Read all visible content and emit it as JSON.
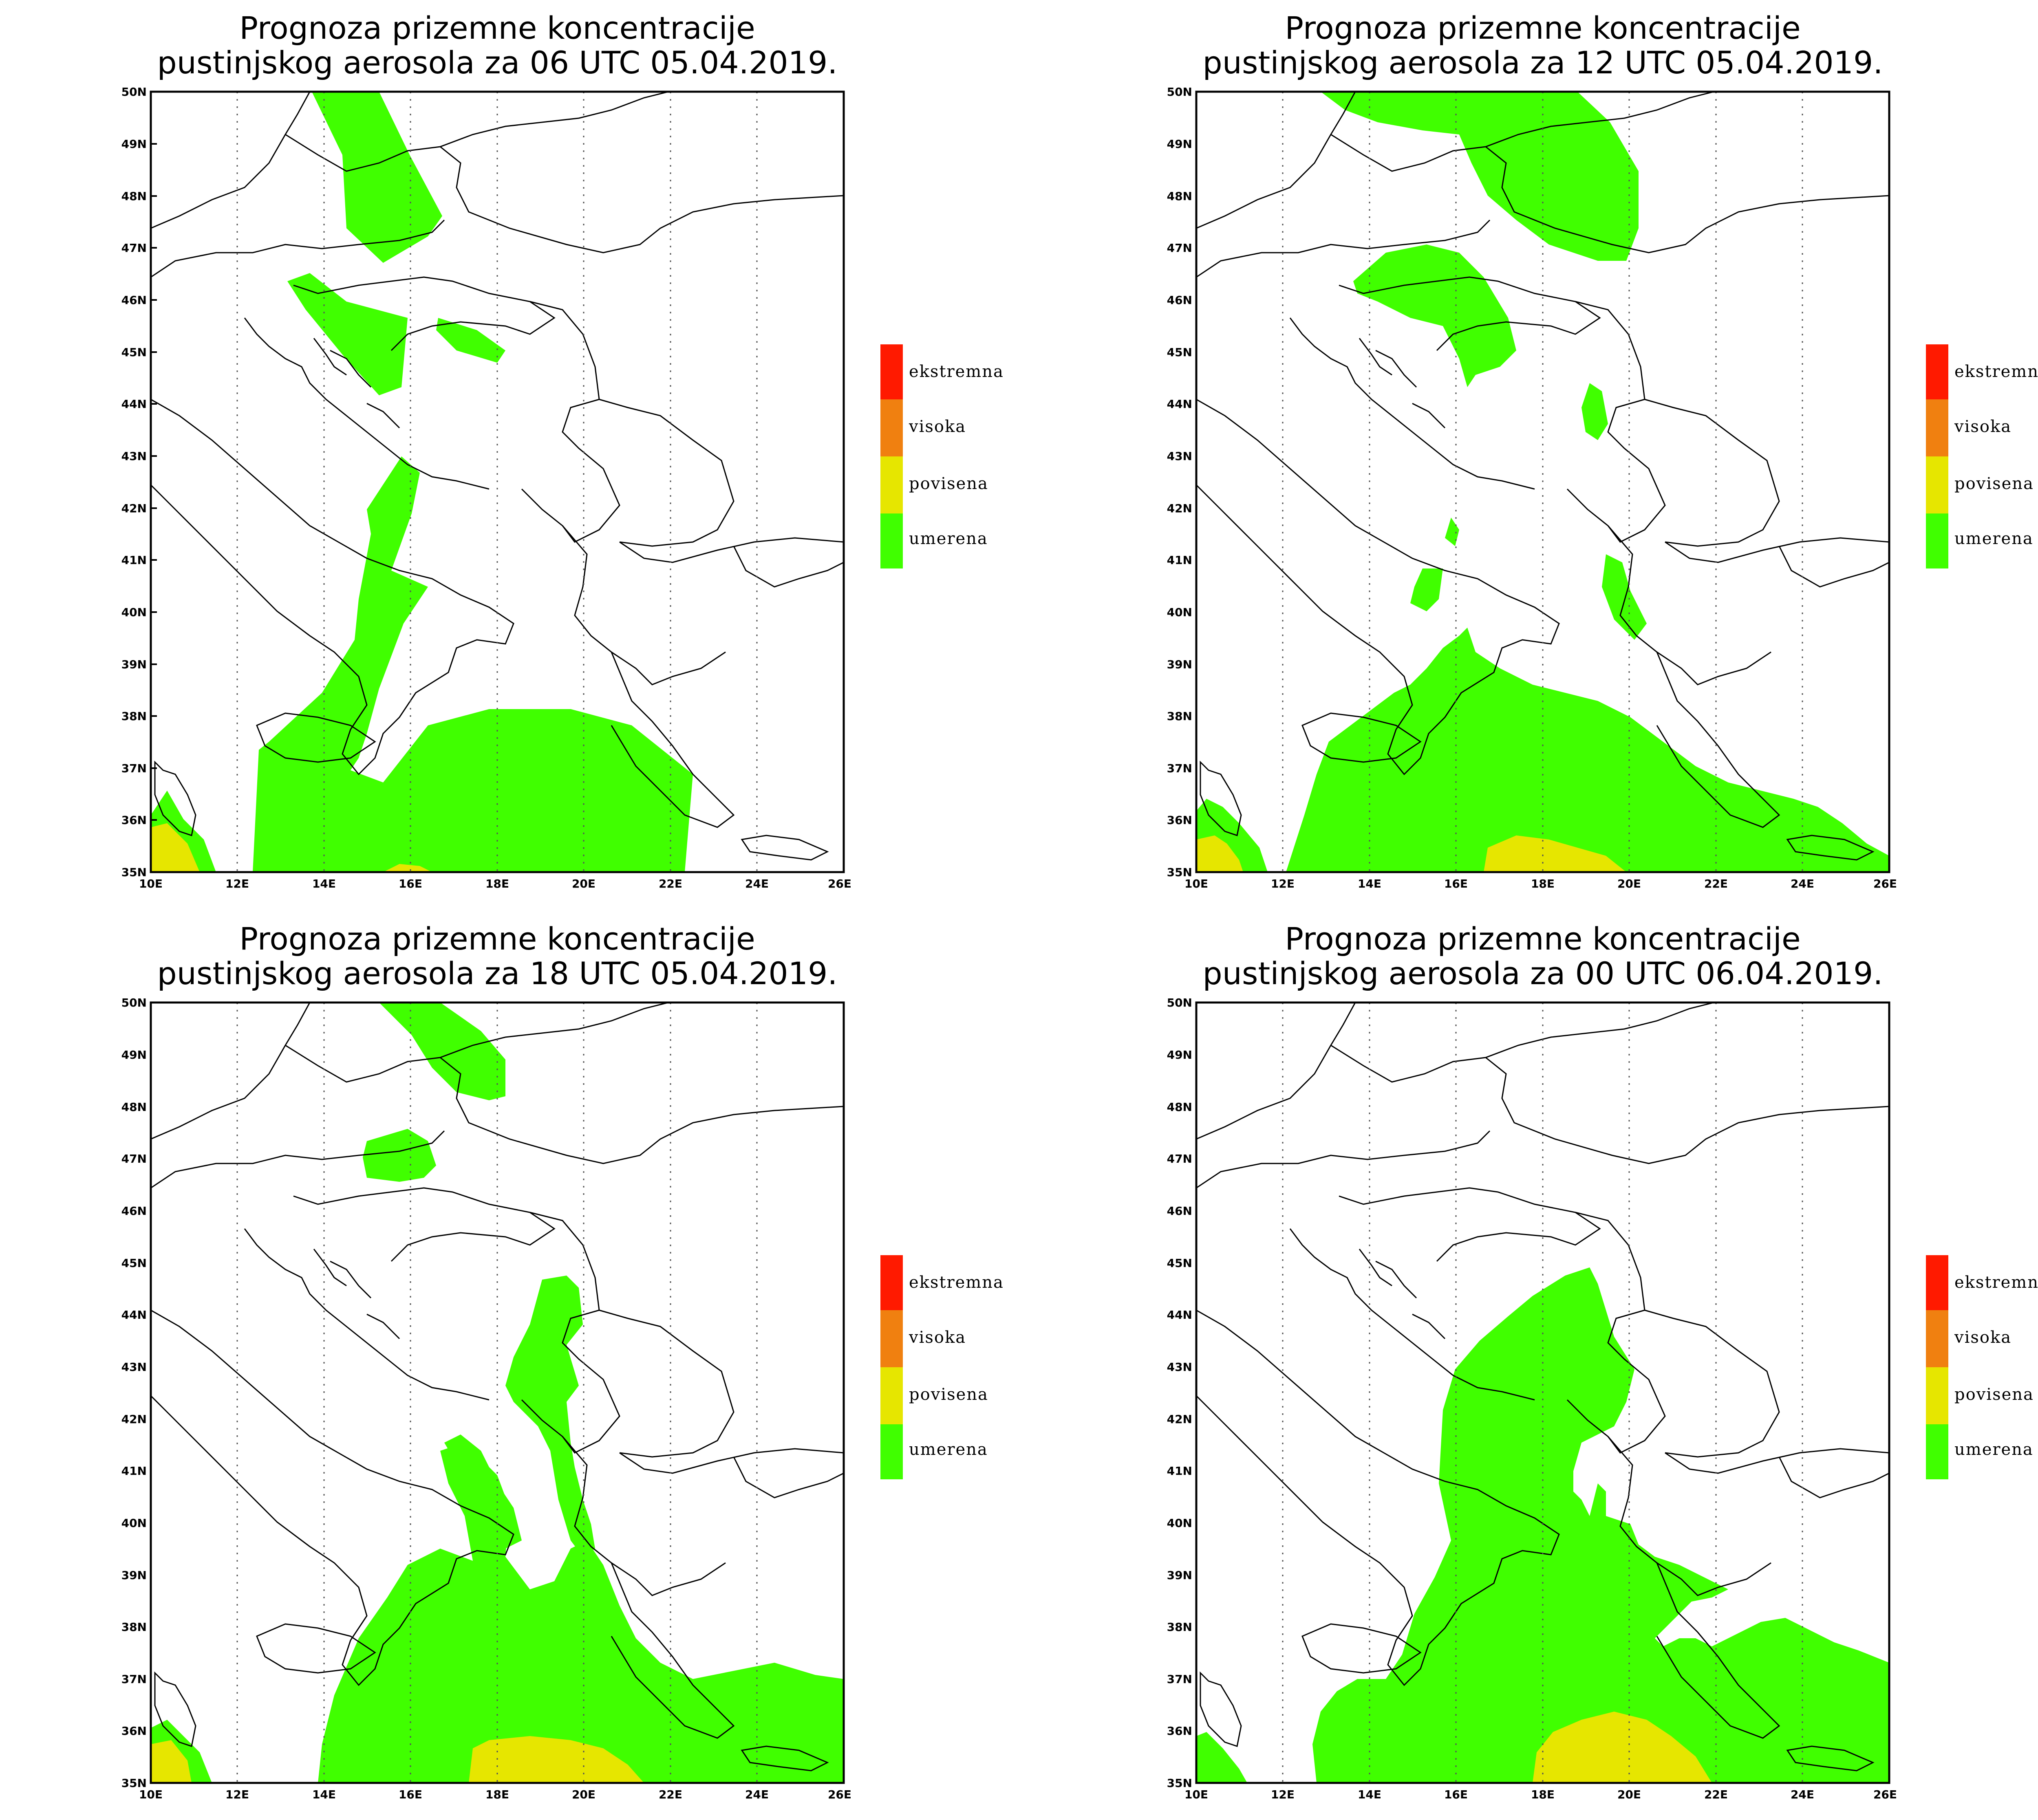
{
  "panels": [
    {
      "title_line1": "Prognoza prizemne koncentracije",
      "title_line2": "pustinjskog aerosola za 06 UTC 05.04.2019."
    },
    {
      "title_line1": "Prognoza prizemne koncentracije",
      "title_line2": "pustinjskog aerosola za 12 UTC 05.04.2019."
    },
    {
      "title_line1": "Prognoza prizemne koncentracije",
      "title_line2": "pustinjskog aerosola za 18 UTC 05.04.2019."
    },
    {
      "title_line1": "Prognoza prizemne koncentracije",
      "title_line2": "pustinjskog aerosola za 00 UTC 06.04.2019."
    }
  ],
  "lat_ticks": [
    "35N",
    "36N",
    "37N",
    "38N",
    "39N",
    "40N",
    "41N",
    "42N",
    "43N",
    "44N",
    "45N",
    "46N",
    "47N",
    "48N",
    "49N",
    "50N"
  ],
  "lon_ticks": [
    "10E",
    "12E",
    "14E",
    "16E",
    "18E",
    "20E",
    "22E",
    "24E",
    "26E"
  ],
  "legend": [
    {
      "label": "ekstremna",
      "color": "#ff1a00"
    },
    {
      "label": "visoka",
      "color": "#f08010"
    },
    {
      "label": "povisena",
      "color": "#e6e600"
    },
    {
      "label": "umerena",
      "color": "#40ff00"
    }
  ],
  "colors": {
    "moderate": "#40ff00",
    "elevated": "#e6e600",
    "border": "#000000",
    "grid": "#555555"
  }
}
